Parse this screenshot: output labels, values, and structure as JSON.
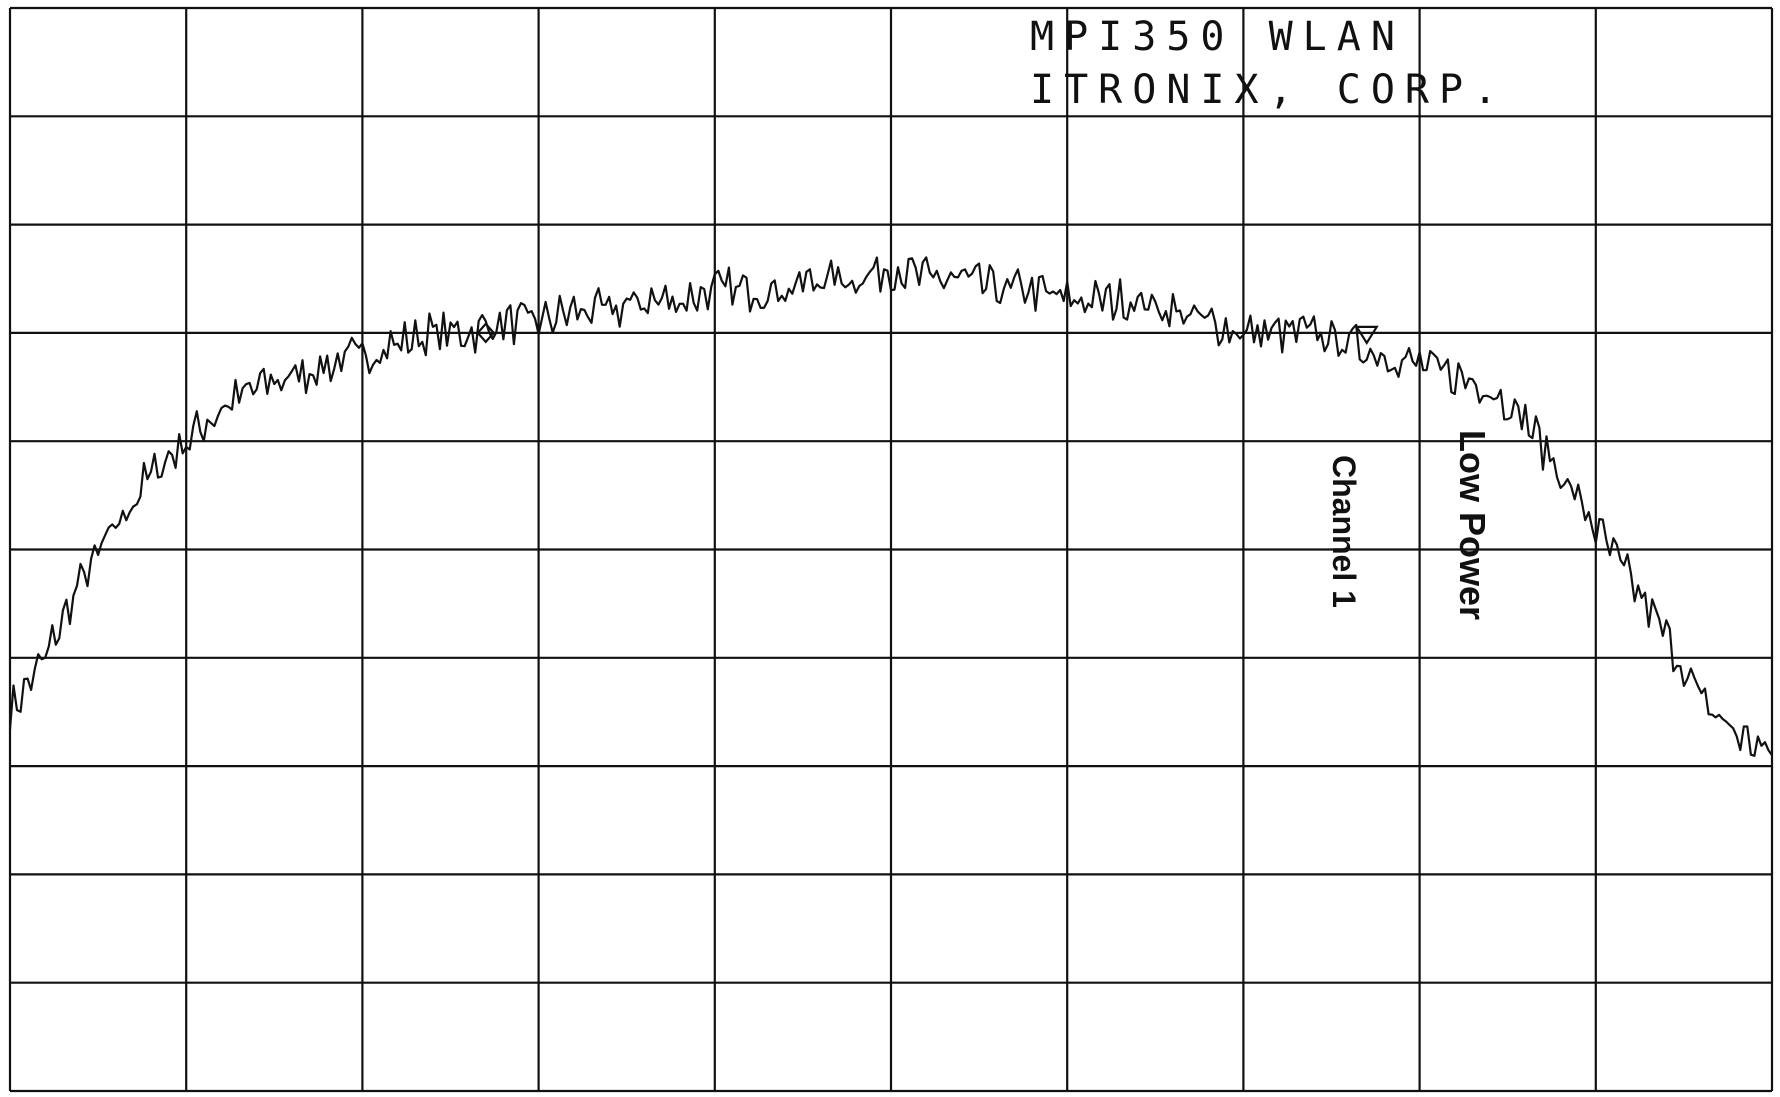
{
  "chart_data": {
    "type": "line",
    "title": [
      "MPI350 WLAN",
      "ITRONIX, CORP."
    ],
    "annotations": [
      {
        "text": "Low Power"
      },
      {
        "text": "Channel 1"
      }
    ],
    "grid": true,
    "grid_divisions": {
      "x": 10,
      "y": 10
    },
    "xlim": [
      0,
      10
    ],
    "ylim": [
      0,
      10
    ],
    "series": [
      {
        "x": [
          0,
          0.2,
          0.4,
          0.6,
          0.8,
          1.0,
          1.2,
          1.4,
          1.6,
          1.8,
          2.0,
          2.2,
          2.4,
          2.6,
          2.8,
          3.0,
          3.2,
          3.4,
          3.6,
          3.8,
          4.0,
          4.2,
          4.4,
          4.6,
          4.8,
          5.0,
          5.2,
          5.4,
          5.6,
          5.8,
          6.0,
          6.2,
          6.4,
          6.6,
          6.8,
          7.0,
          7.2,
          7.4,
          7.6,
          7.8,
          8.0,
          8.2,
          8.4,
          8.6,
          8.8,
          9.0,
          9.2,
          9.4,
          9.6,
          9.8,
          10.0
        ],
        "y": [
          3.5,
          4.0,
          4.7,
          5.2,
          5.7,
          6.0,
          6.3,
          6.5,
          6.6,
          6.7,
          6.8,
          6.9,
          7.0,
          7.0,
          7.1,
          7.1,
          7.2,
          7.2,
          7.3,
          7.3,
          7.4,
          7.4,
          7.4,
          7.5,
          7.5,
          7.6,
          7.5,
          7.5,
          7.4,
          7.4,
          7.3,
          7.3,
          7.3,
          7.2,
          7.1,
          7.0,
          7.0,
          7.0,
          6.9,
          6.8,
          6.7,
          6.6,
          6.5,
          6.2,
          5.7,
          5.2,
          4.7,
          4.2,
          3.6,
          3.3,
          3.1
        ]
      }
    ],
    "markers": [
      {
        "shape": "diamond",
        "x": 2.7,
        "y": 7.0
      },
      {
        "shape": "triangle-down",
        "x": 7.7,
        "y": 7.0
      }
    ]
  }
}
